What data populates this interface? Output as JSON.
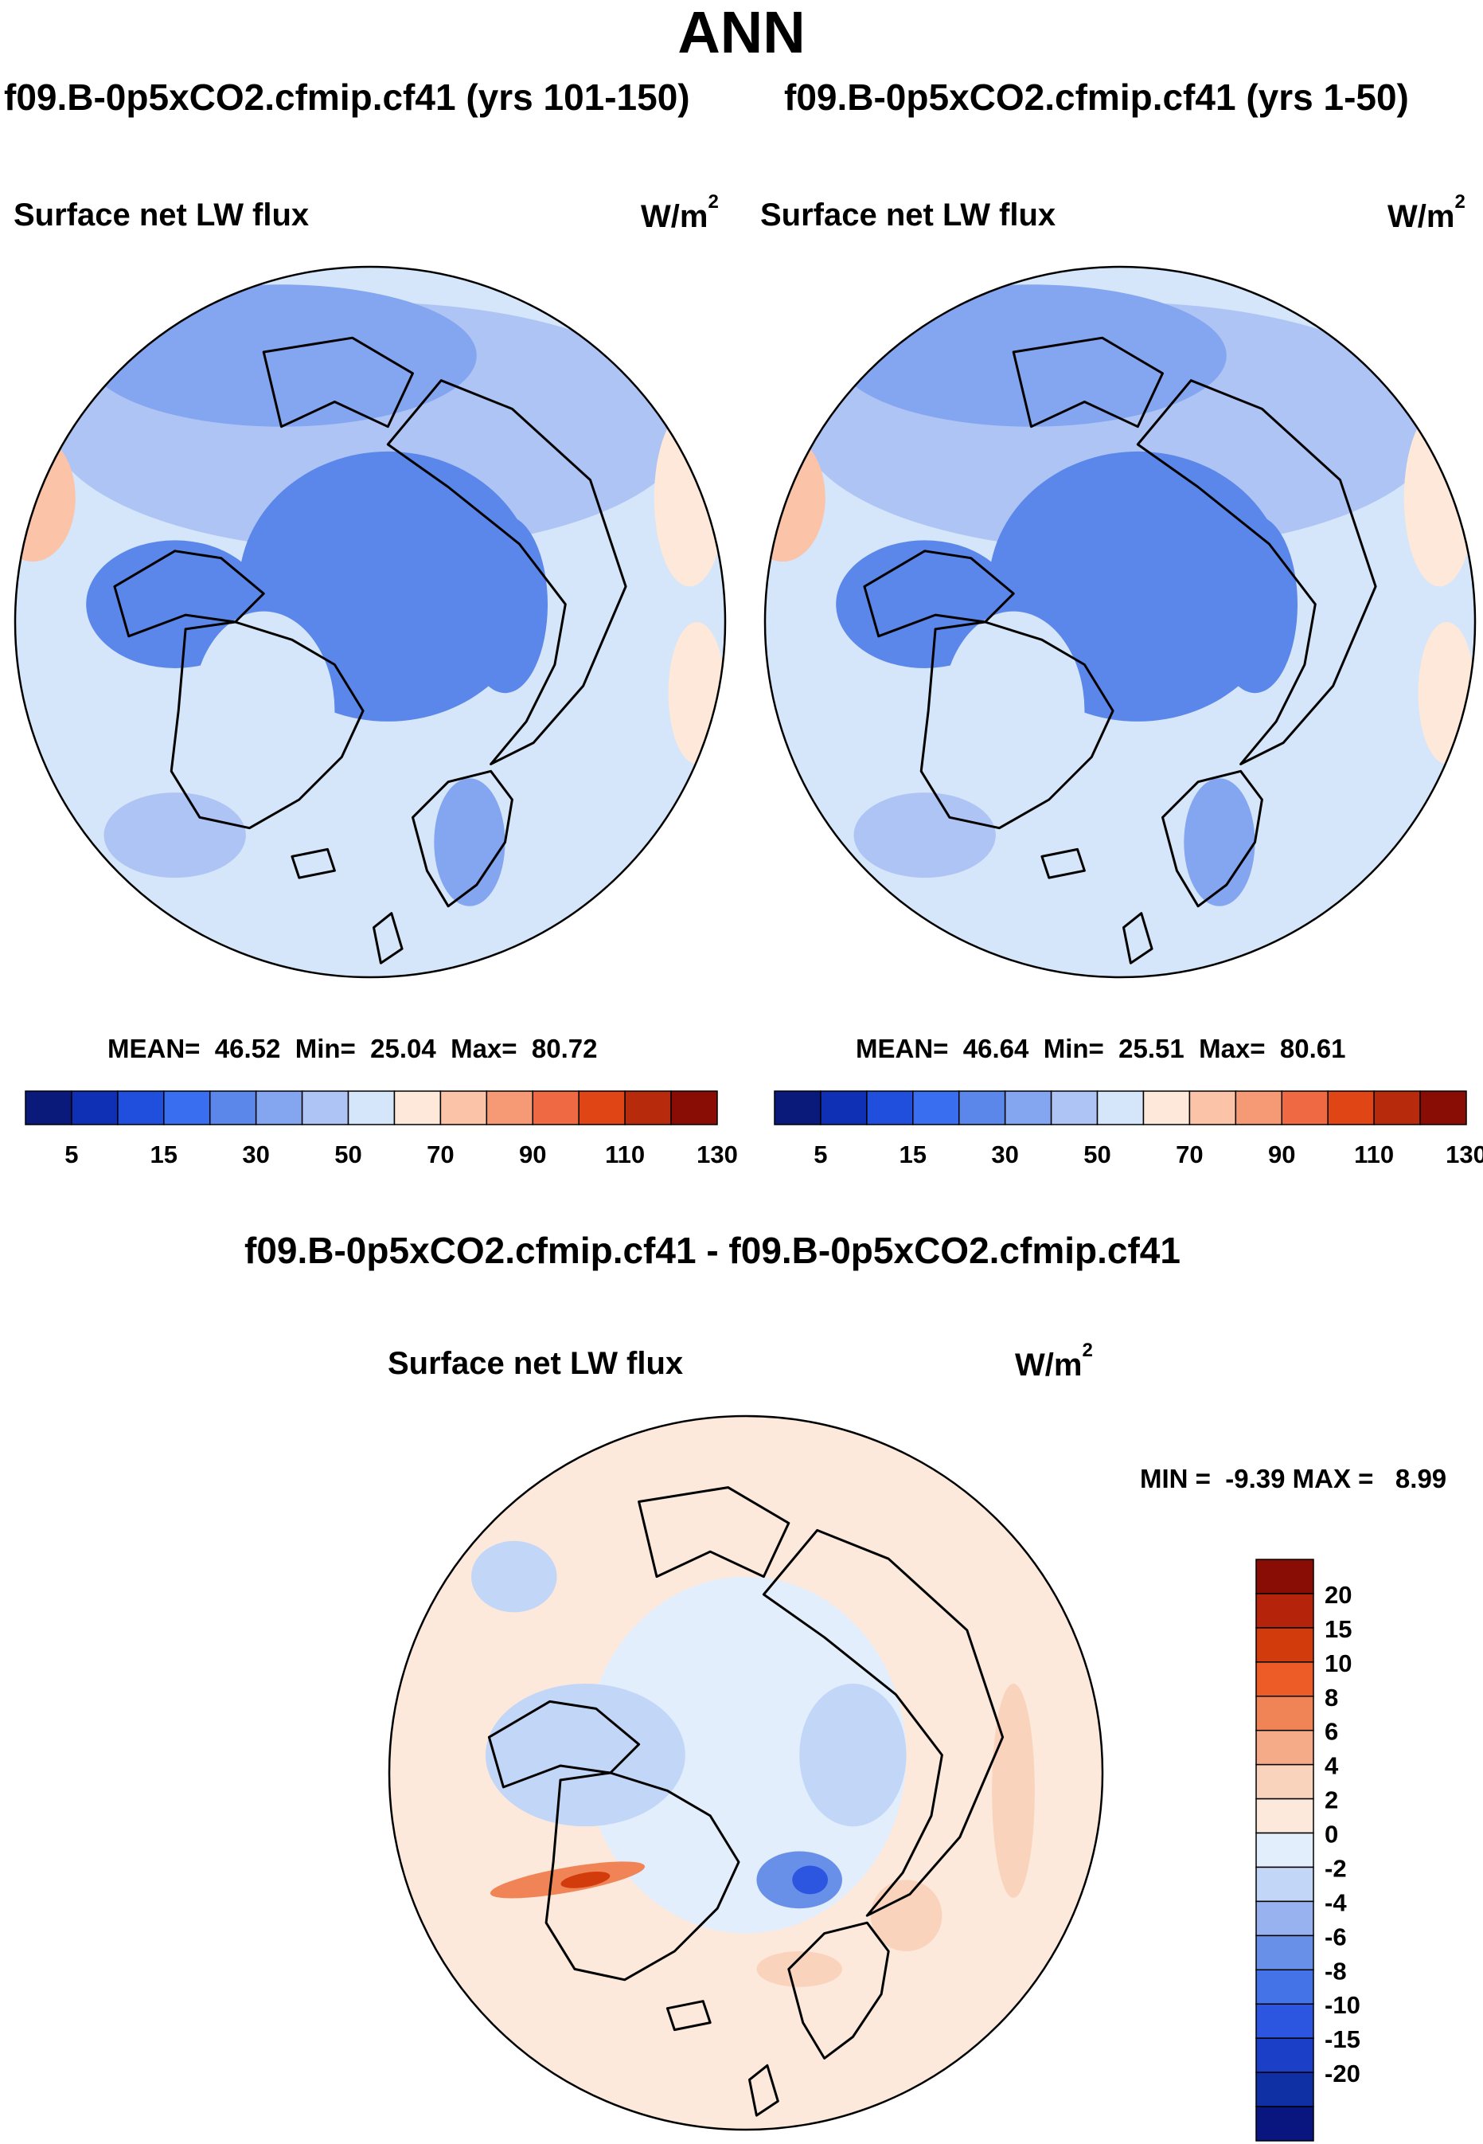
{
  "chart_data": [
    {
      "type": "heatmap",
      "projection": "north-polar-stereographic",
      "case_title": "f09.B-0p5xCO2.cfmip.cf41 (yrs 101-150)",
      "variable": "Surface net LW flux",
      "units": "W/m",
      "units_exponent": "2",
      "stats": {
        "mean_label": "MEAN=",
        "mean": "46.52",
        "min_label": "Min=",
        "min": "25.04",
        "max_label": "Max=",
        "max": "80.72"
      },
      "colorbar": {
        "orientation": "horizontal",
        "levels": [
          5,
          10,
          15,
          20,
          30,
          40,
          50,
          60,
          70,
          80,
          90,
          100,
          110,
          120,
          130
        ],
        "tick_labels": [
          "5",
          "15",
          "30",
          "50",
          "70",
          "90",
          "110",
          "130"
        ]
      }
    },
    {
      "type": "heatmap",
      "projection": "north-polar-stereographic",
      "case_title": "f09.B-0p5xCO2.cfmip.cf41 (yrs 1-50)",
      "variable": "Surface net LW flux",
      "units": "W/m",
      "units_exponent": "2",
      "stats": {
        "mean_label": "MEAN=",
        "mean": "46.64",
        "min_label": "Min=",
        "min": "25.51",
        "max_label": "Max=",
        "max": "80.61"
      },
      "colorbar": {
        "orientation": "horizontal",
        "levels": [
          5,
          10,
          15,
          20,
          30,
          40,
          50,
          60,
          70,
          80,
          90,
          100,
          110,
          120,
          130
        ],
        "tick_labels": [
          "5",
          "15",
          "30",
          "50",
          "70",
          "90",
          "110",
          "130"
        ]
      }
    },
    {
      "type": "heatmap",
      "projection": "north-polar-stereographic",
      "case_title": "f09.B-0p5xCO2.cfmip.cf41 - f09.B-0p5xCO2.cfmip.cf41",
      "variable": "Surface net LW flux",
      "units": "W/m",
      "units_exponent": "2",
      "stats": {
        "text": "MIN =  -9.39 MAX =   8.99",
        "min": -9.39,
        "max": 8.99
      },
      "colorbar": {
        "orientation": "vertical",
        "tick_labels": [
          "20",
          "15",
          "10",
          "8",
          "6",
          "4",
          "2",
          "0",
          "-2",
          "-4",
          "-6",
          "-8",
          "-10",
          "-15",
          "-20"
        ]
      }
    }
  ],
  "figure": {
    "title": "ANN"
  },
  "colors": {
    "abs_palette": [
      "#0a1a7a",
      "#0f2fb4",
      "#1f4fdc",
      "#3a6ef0",
      "#5b87ea",
      "#84a5ef",
      "#aec4f4",
      "#d6e6fa",
      "#fde8d9",
      "#fbc3a7",
      "#f59a74",
      "#ef6a43",
      "#e04516",
      "#b82a0c",
      "#8a0d05"
    ],
    "diff_palette": [
      "#0a1680",
      "#0f2fa5",
      "#1c3fc8",
      "#2d56e0",
      "#4373e6",
      "#6990e8",
      "#98b2f0",
      "#c2d6f8",
      "#e3eefc",
      "#fde9db",
      "#fad3bc",
      "#f6ab88",
      "#f18456",
      "#ed5c27",
      "#d23c0c",
      "#b5240a",
      "#8a0d05"
    ],
    "coastline": "#000000"
  }
}
